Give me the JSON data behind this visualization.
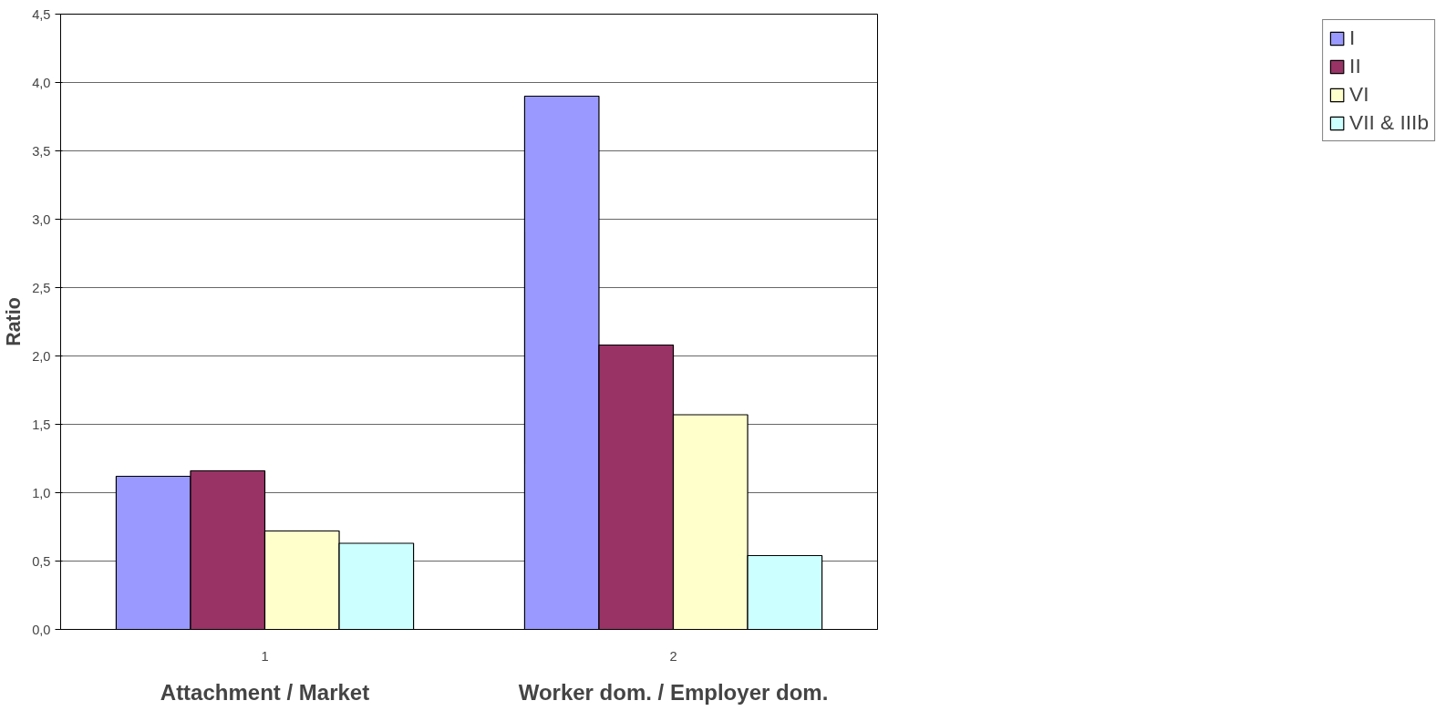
{
  "chart_data": {
    "type": "bar",
    "ylabel": "Ratio",
    "categories": [
      "1",
      "2"
    ],
    "annotations": [
      "Attachment / Market",
      "Worker dom. / Employer dom."
    ],
    "series": [
      {
        "name": "I",
        "color": "#9999ff",
        "values": [
          1.12,
          3.9
        ]
      },
      {
        "name": "II",
        "color": "#993366",
        "values": [
          1.16,
          2.08
        ]
      },
      {
        "name": "VI",
        "color": "#ffffcc",
        "values": [
          0.72,
          1.57
        ]
      },
      {
        "name": "VII & IIIb",
        "color": "#ccffff",
        "values": [
          0.63,
          0.54
        ]
      }
    ],
    "ylim": [
      0,
      4.5
    ],
    "yticks": [
      {
        "value": 0,
        "label": "0,0"
      },
      {
        "value": 0.5,
        "label": "0,5"
      },
      {
        "value": 1,
        "label": "1,0"
      },
      {
        "value": 1.5,
        "label": "1,5"
      },
      {
        "value": 2,
        "label": "2,0"
      },
      {
        "value": 2.5,
        "label": "2,5"
      },
      {
        "value": 3,
        "label": "3,0"
      },
      {
        "value": 3.5,
        "label": "3,5"
      },
      {
        "value": 4,
        "label": "4,0"
      },
      {
        "value": 4.5,
        "label": "4,5"
      }
    ],
    "grid": "y",
    "legend": "right"
  }
}
